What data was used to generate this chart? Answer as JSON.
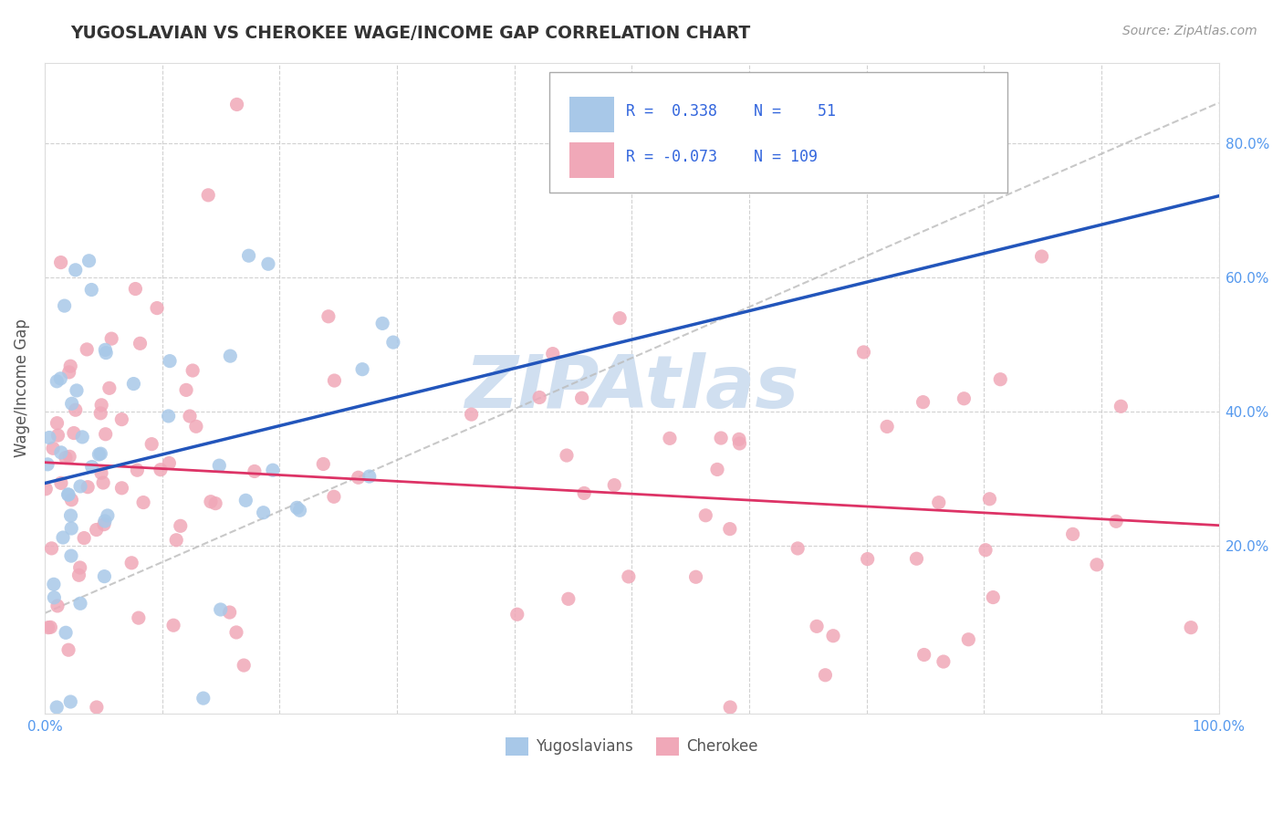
{
  "title": "YUGOSLAVIAN VS CHEROKEE WAGE/INCOME GAP CORRELATION CHART",
  "source_text": "Source: ZipAtlas.com",
  "ylabel": "Wage/Income Gap",
  "xlim": [
    0.0,
    1.0
  ],
  "ylim": [
    -0.05,
    0.92
  ],
  "x_tick_vals": [
    0.0,
    0.1,
    0.2,
    0.3,
    0.4,
    0.5,
    0.6,
    0.7,
    0.8,
    0.9,
    1.0
  ],
  "x_tick_labels": [
    "0.0%",
    "",
    "",
    "",
    "",
    "",
    "",
    "",
    "",
    "",
    "100.0%"
  ],
  "y_tick_vals": [
    0.2,
    0.4,
    0.6,
    0.8
  ],
  "y_tick_labels": [
    "20.0%",
    "40.0%",
    "60.0%",
    "80.0%"
  ],
  "blue_color": "#a8c8e8",
  "pink_color": "#f0a8b8",
  "trendline_blue": "#2255bb",
  "trendline_pink": "#dd3366",
  "trendline_gray_color": "#bbbbbb",
  "tick_color": "#5599ee",
  "title_color": "#333333",
  "source_color": "#999999",
  "ylabel_color": "#555555",
  "grid_color": "#cccccc",
  "legend_text_color": "#3366dd",
  "watermark_color": "#d0dff0",
  "legend_r1": "R =  0.338",
  "legend_n1": "N =   51",
  "legend_r2": "R = -0.073",
  "legend_n2": "N = 109"
}
